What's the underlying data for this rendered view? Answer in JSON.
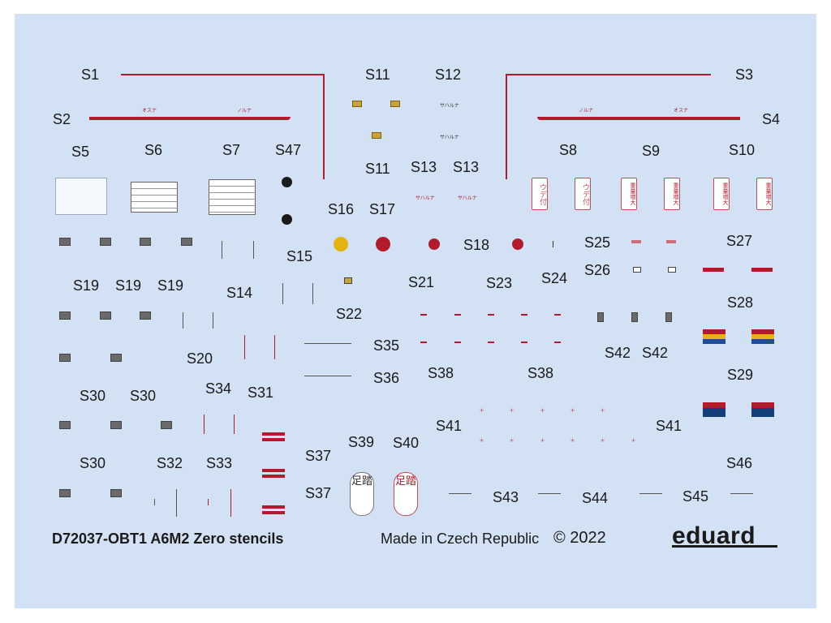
{
  "labels": {
    "S1": "S1",
    "S2": "S2",
    "S3": "S3",
    "S4": "S4",
    "S5": "S5",
    "S6": "S6",
    "S7": "S7",
    "S8": "S8",
    "S9": "S9",
    "S10": "S10",
    "S11": "S11",
    "S12": "S12",
    "S13": "S13",
    "S14": "S14",
    "S15": "S15",
    "S16": "S16",
    "S17": "S17",
    "S18": "S18",
    "S19": "S19",
    "S20": "S20",
    "S21": "S21",
    "S22": "S22",
    "S23": "S23",
    "S24": "S24",
    "S25": "S25",
    "S26": "S26",
    "S27": "S27",
    "S28": "S28",
    "S29": "S29",
    "S30": "S30",
    "S31": "S31",
    "S32": "S32",
    "S33": "S33",
    "S34": "S34",
    "S35": "S35",
    "S36": "S36",
    "S37": "S37",
    "S38": "S38",
    "S39": "S39",
    "S40": "S40",
    "S41": "S41",
    "S42": "S42",
    "S43": "S43",
    "S44": "S44",
    "S45": "S45",
    "S46": "S46",
    "S47": "S47"
  },
  "footer": {
    "product": "D72037-OBT1 A6M2 Zero stencils",
    "made_in": "Made in Czech Republic",
    "copyright": "© 2022",
    "brand": "eduard"
  },
  "stencil_text": {
    "osuna": "オスナ",
    "noruna": "ノルナ",
    "fumuna": "サハルナ",
    "ude_tsuki": "ウデ付",
    "juryo_zodai": "重量増大",
    "ashi_fumi": "足踏"
  },
  "colors": {
    "sheet": "#d2e1f3",
    "stencil_red": "#b31b2c",
    "yellow": "#e6b20e",
    "black": "#1a1a1a"
  }
}
